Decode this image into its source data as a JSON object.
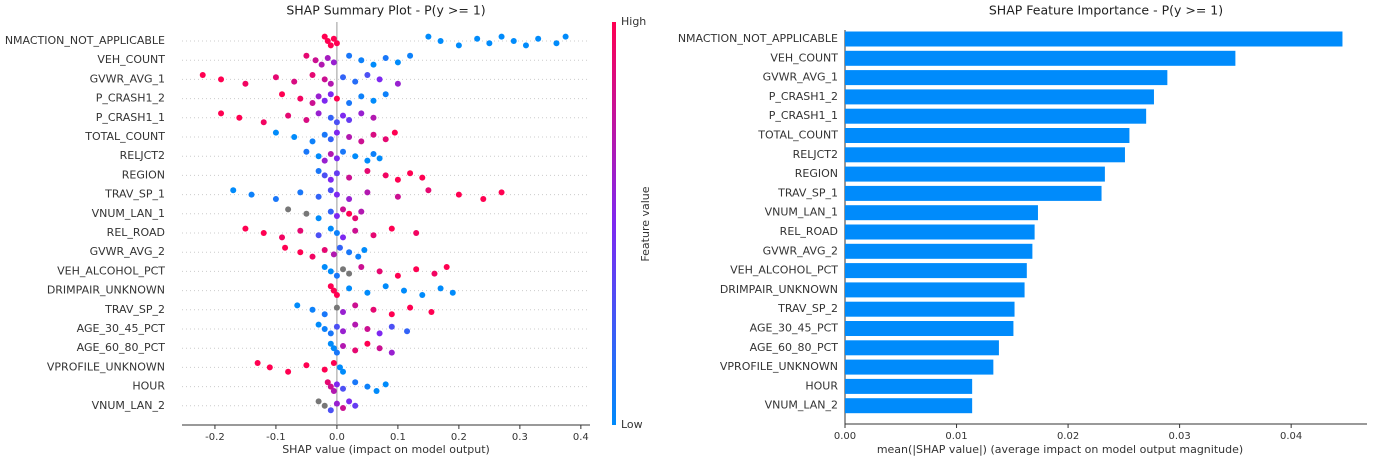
{
  "chart_data": [
    {
      "type": "beeswarm",
      "title": "SHAP Summary Plot - P(y >= 1)",
      "xlabel": "SHAP value (impact on model output)",
      "xlim": [
        -0.254,
        0.415
      ],
      "xticks": [
        -0.2,
        -0.1,
        {
          "value": 0,
          "label": "0.0"
        },
        0.1,
        0.2,
        0.3,
        0.4
      ],
      "colormap": [
        "#008bfb",
        "#7e28f0",
        "#ff0051"
      ],
      "missing_color": "#777777",
      "colorbar": {
        "label": "Feature value",
        "high": "High",
        "low": "Low"
      },
      "series": [
        {
          "name": "NMACTION_NOT_APPLICABLE",
          "shap": [
            -0.02,
            -0.015,
            -0.01,
            -0.005,
            0.0,
            0.15,
            0.17,
            0.2,
            0.23,
            0.25,
            0.27,
            0.29,
            0.31,
            0.33,
            0.36,
            0.375
          ],
          "feature_value": [
            1,
            1,
            1,
            1,
            1,
            0,
            0,
            0,
            0,
            0,
            0,
            0,
            0,
            0,
            0,
            0
          ]
        },
        {
          "name": "VEH_COUNT",
          "shap": [
            -0.05,
            -0.035,
            -0.025,
            -0.015,
            -0.005,
            0.02,
            0.04,
            0.06,
            0.08,
            0.1,
            0.12
          ],
          "feature_value": [
            0.9,
            0.8,
            0.7,
            0.65,
            0.6,
            0.1,
            0.05,
            0,
            0.1,
            0,
            0.05
          ]
        },
        {
          "name": "GVWR_AVG_1",
          "shap": [
            -0.22,
            -0.19,
            -0.15,
            -0.1,
            -0.07,
            -0.04,
            -0.02,
            -0.01,
            0.01,
            0.03,
            0.05,
            0.07,
            0.1
          ],
          "feature_value": [
            1,
            1,
            0.95,
            0.9,
            0.85,
            0.9,
            0.8,
            0.7,
            0.2,
            0.15,
            0.3,
            0.5,
            0.6
          ]
        },
        {
          "name": "P_CRASH1_2",
          "shap": [
            -0.09,
            -0.06,
            -0.04,
            -0.03,
            -0.02,
            -0.01,
            0.0,
            0.02,
            0.04,
            0.06,
            0.08
          ],
          "feature_value": [
            1,
            0.95,
            0.8,
            0.6,
            0.5,
            0.5,
            1,
            0.1,
            0.05,
            0,
            0.05
          ]
        },
        {
          "name": "P_CRASH1_1",
          "shap": [
            -0.19,
            -0.16,
            -0.12,
            -0.08,
            -0.05,
            -0.03,
            -0.01,
            0.0,
            0.01,
            0.02,
            0.04,
            0.06
          ],
          "feature_value": [
            1,
            1,
            0.95,
            0.9,
            0.85,
            0.6,
            0.2,
            0.3,
            0.5,
            0.4,
            0.6,
            0.7
          ]
        },
        {
          "name": "TOTAL_COUNT",
          "shap": [
            -0.1,
            -0.07,
            -0.04,
            -0.02,
            -0.01,
            0.0,
            0.02,
            0.04,
            0.06,
            0.08,
            0.095
          ],
          "feature_value": [
            0,
            0,
            0.05,
            0.1,
            0.2,
            0.5,
            0.7,
            0.8,
            0.85,
            0.9,
            1
          ]
        },
        {
          "name": "RELJCT2",
          "shap": [
            -0.05,
            -0.03,
            -0.02,
            -0.01,
            0.0,
            0.01,
            0.03,
            0.05,
            0.06,
            0.07
          ],
          "feature_value": [
            0.1,
            0,
            0.6,
            0.7,
            0.5,
            0.1,
            0,
            0,
            0.05,
            0
          ]
        },
        {
          "name": "REGION",
          "shap": [
            -0.03,
            -0.02,
            -0.01,
            0.0,
            0.02,
            0.05,
            0.08,
            0.1,
            0.12,
            0.14
          ],
          "feature_value": [
            0.1,
            0.3,
            0.5,
            0.4,
            0.8,
            0.9,
            0.95,
            1,
            1,
            1
          ]
        },
        {
          "name": "TRAV_SP_1",
          "shap": [
            -0.17,
            -0.14,
            -0.1,
            -0.06,
            -0.03,
            -0.01,
            0.0,
            0.02,
            0.05,
            0.1,
            0.15,
            0.2,
            0.24,
            0.27
          ],
          "feature_value": [
            0,
            0.05,
            0.1,
            0.1,
            0.2,
            0.3,
            0.5,
            0.6,
            0.7,
            0.8,
            0.9,
            1,
            1,
            1
          ]
        },
        {
          "name": "VNUM_LAN_1",
          "shap": [
            -0.08,
            -0.05,
            -0.03,
            -0.01,
            0.0,
            0.01,
            0.02,
            0.03,
            0.04
          ],
          "feature_value": [
            null,
            null,
            0,
            0.2,
            0.5,
            0.8,
            1,
            0.9,
            0.7
          ]
        },
        {
          "name": "REL_ROAD",
          "shap": [
            -0.15,
            -0.12,
            -0.09,
            -0.06,
            -0.03,
            -0.01,
            0.0,
            0.01,
            0.03,
            0.06,
            0.09,
            0.13
          ],
          "feature_value": [
            1,
            1,
            0.95,
            0.9,
            0.3,
            0,
            0.05,
            0.5,
            0.8,
            0.9,
            1,
            0.95
          ]
        },
        {
          "name": "GVWR_AVG_2",
          "shap": [
            -0.085,
            -0.06,
            -0.04,
            -0.02,
            -0.005,
            0.005,
            0.02,
            0.035,
            0.045
          ],
          "feature_value": [
            1,
            1,
            0.95,
            0.9,
            0.7,
            0.2,
            0.1,
            0.05,
            0
          ]
        },
        {
          "name": "VEH_ALCOHOL_PCT",
          "shap": [
            -0.02,
            -0.01,
            0.0,
            0.01,
            0.02,
            0.04,
            0.07,
            0.1,
            0.13,
            0.16,
            0.18
          ],
          "feature_value": [
            0,
            0,
            0.1,
            null,
            null,
            0.8,
            0.9,
            1,
            1,
            0.95,
            1
          ]
        },
        {
          "name": "DRIMPAIR_UNKNOWN",
          "shap": [
            -0.01,
            -0.005,
            0.0,
            0.02,
            0.05,
            0.08,
            0.11,
            0.14,
            0.17,
            0.19
          ],
          "feature_value": [
            1,
            1,
            1,
            0,
            0,
            0,
            0,
            0,
            0,
            0
          ]
        },
        {
          "name": "TRAV_SP_2",
          "shap": [
            -0.065,
            -0.04,
            -0.02,
            0.0,
            0.01,
            0.03,
            0.06,
            0.09,
            0.12,
            0.155
          ],
          "feature_value": [
            0,
            0.05,
            0.1,
            null,
            0.6,
            0.8,
            0.9,
            1,
            1,
            1
          ]
        },
        {
          "name": "AGE_30_45_PCT",
          "shap": [
            -0.03,
            -0.02,
            -0.01,
            0.0,
            0.01,
            0.03,
            0.05,
            0.07,
            0.09,
            0.115
          ],
          "feature_value": [
            0,
            0.05,
            0.1,
            0.3,
            0.6,
            0.7,
            0.8,
            0.5,
            0.3,
            0.2
          ]
        },
        {
          "name": "AGE_60_80_PCT",
          "shap": [
            -0.01,
            -0.005,
            0.0,
            0.01,
            0.03,
            0.05,
            0.07,
            0.09
          ],
          "feature_value": [
            0,
            0,
            0.1,
            0.7,
            0.9,
            1,
            0.8,
            0.6
          ]
        },
        {
          "name": "VPROFILE_UNKNOWN",
          "shap": [
            -0.13,
            -0.11,
            -0.08,
            -0.05,
            -0.02,
            -0.005,
            0.005,
            0.01
          ],
          "feature_value": [
            1,
            1,
            1,
            1,
            1,
            1,
            0,
            0
          ]
        },
        {
          "name": "HOUR",
          "shap": [
            -0.015,
            -0.01,
            -0.005,
            0.0,
            0.01,
            0.03,
            0.05,
            0.065,
            0.08
          ],
          "feature_value": [
            0.9,
            0.8,
            0.7,
            0.5,
            0.3,
            0.1,
            0.05,
            0,
            0
          ]
        },
        {
          "name": "VNUM_LAN_2",
          "shap": [
            -0.03,
            -0.02,
            -0.01,
            0.0,
            0.01,
            0.02,
            0.03
          ],
          "feature_value": [
            null,
            null,
            0.3,
            0.6,
            0.8,
            0.5,
            0.4
          ]
        }
      ]
    },
    {
      "type": "barh",
      "title": "SHAP Feature Importance - P(y >= 1)",
      "xlabel": "mean(|SHAP value|) (average impact on model output magnitude)",
      "xlim": [
        0,
        0.0468
      ],
      "xticks": [
        {
          "value": 0,
          "label": "0.00"
        },
        {
          "value": 0.01,
          "label": "0.01"
        },
        {
          "value": 0.02,
          "label": "0.02"
        },
        {
          "value": 0.03,
          "label": "0.03"
        },
        {
          "value": 0.04,
          "label": "0.04"
        }
      ],
      "color": "#008bfb",
      "categories": [
        "NMACTION_NOT_APPLICABLE",
        "VEH_COUNT",
        "GVWR_AVG_1",
        "P_CRASH1_2",
        "P_CRASH1_1",
        "TOTAL_COUNT",
        "RELJCT2",
        "REGION",
        "TRAV_SP_1",
        "VNUM_LAN_1",
        "REL_ROAD",
        "GVWR_AVG_2",
        "VEH_ALCOHOL_PCT",
        "DRIMPAIR_UNKNOWN",
        "TRAV_SP_2",
        "AGE_30_45_PCT",
        "AGE_60_80_PCT",
        "VPROFILE_UNKNOWN",
        "HOUR",
        "VNUM_LAN_2"
      ],
      "values": [
        0.0446,
        0.035,
        0.0289,
        0.0277,
        0.027,
        0.0255,
        0.0251,
        0.0233,
        0.023,
        0.0173,
        0.017,
        0.0168,
        0.0163,
        0.0161,
        0.0152,
        0.0151,
        0.0138,
        0.0133,
        0.0114,
        0.0114
      ]
    }
  ]
}
